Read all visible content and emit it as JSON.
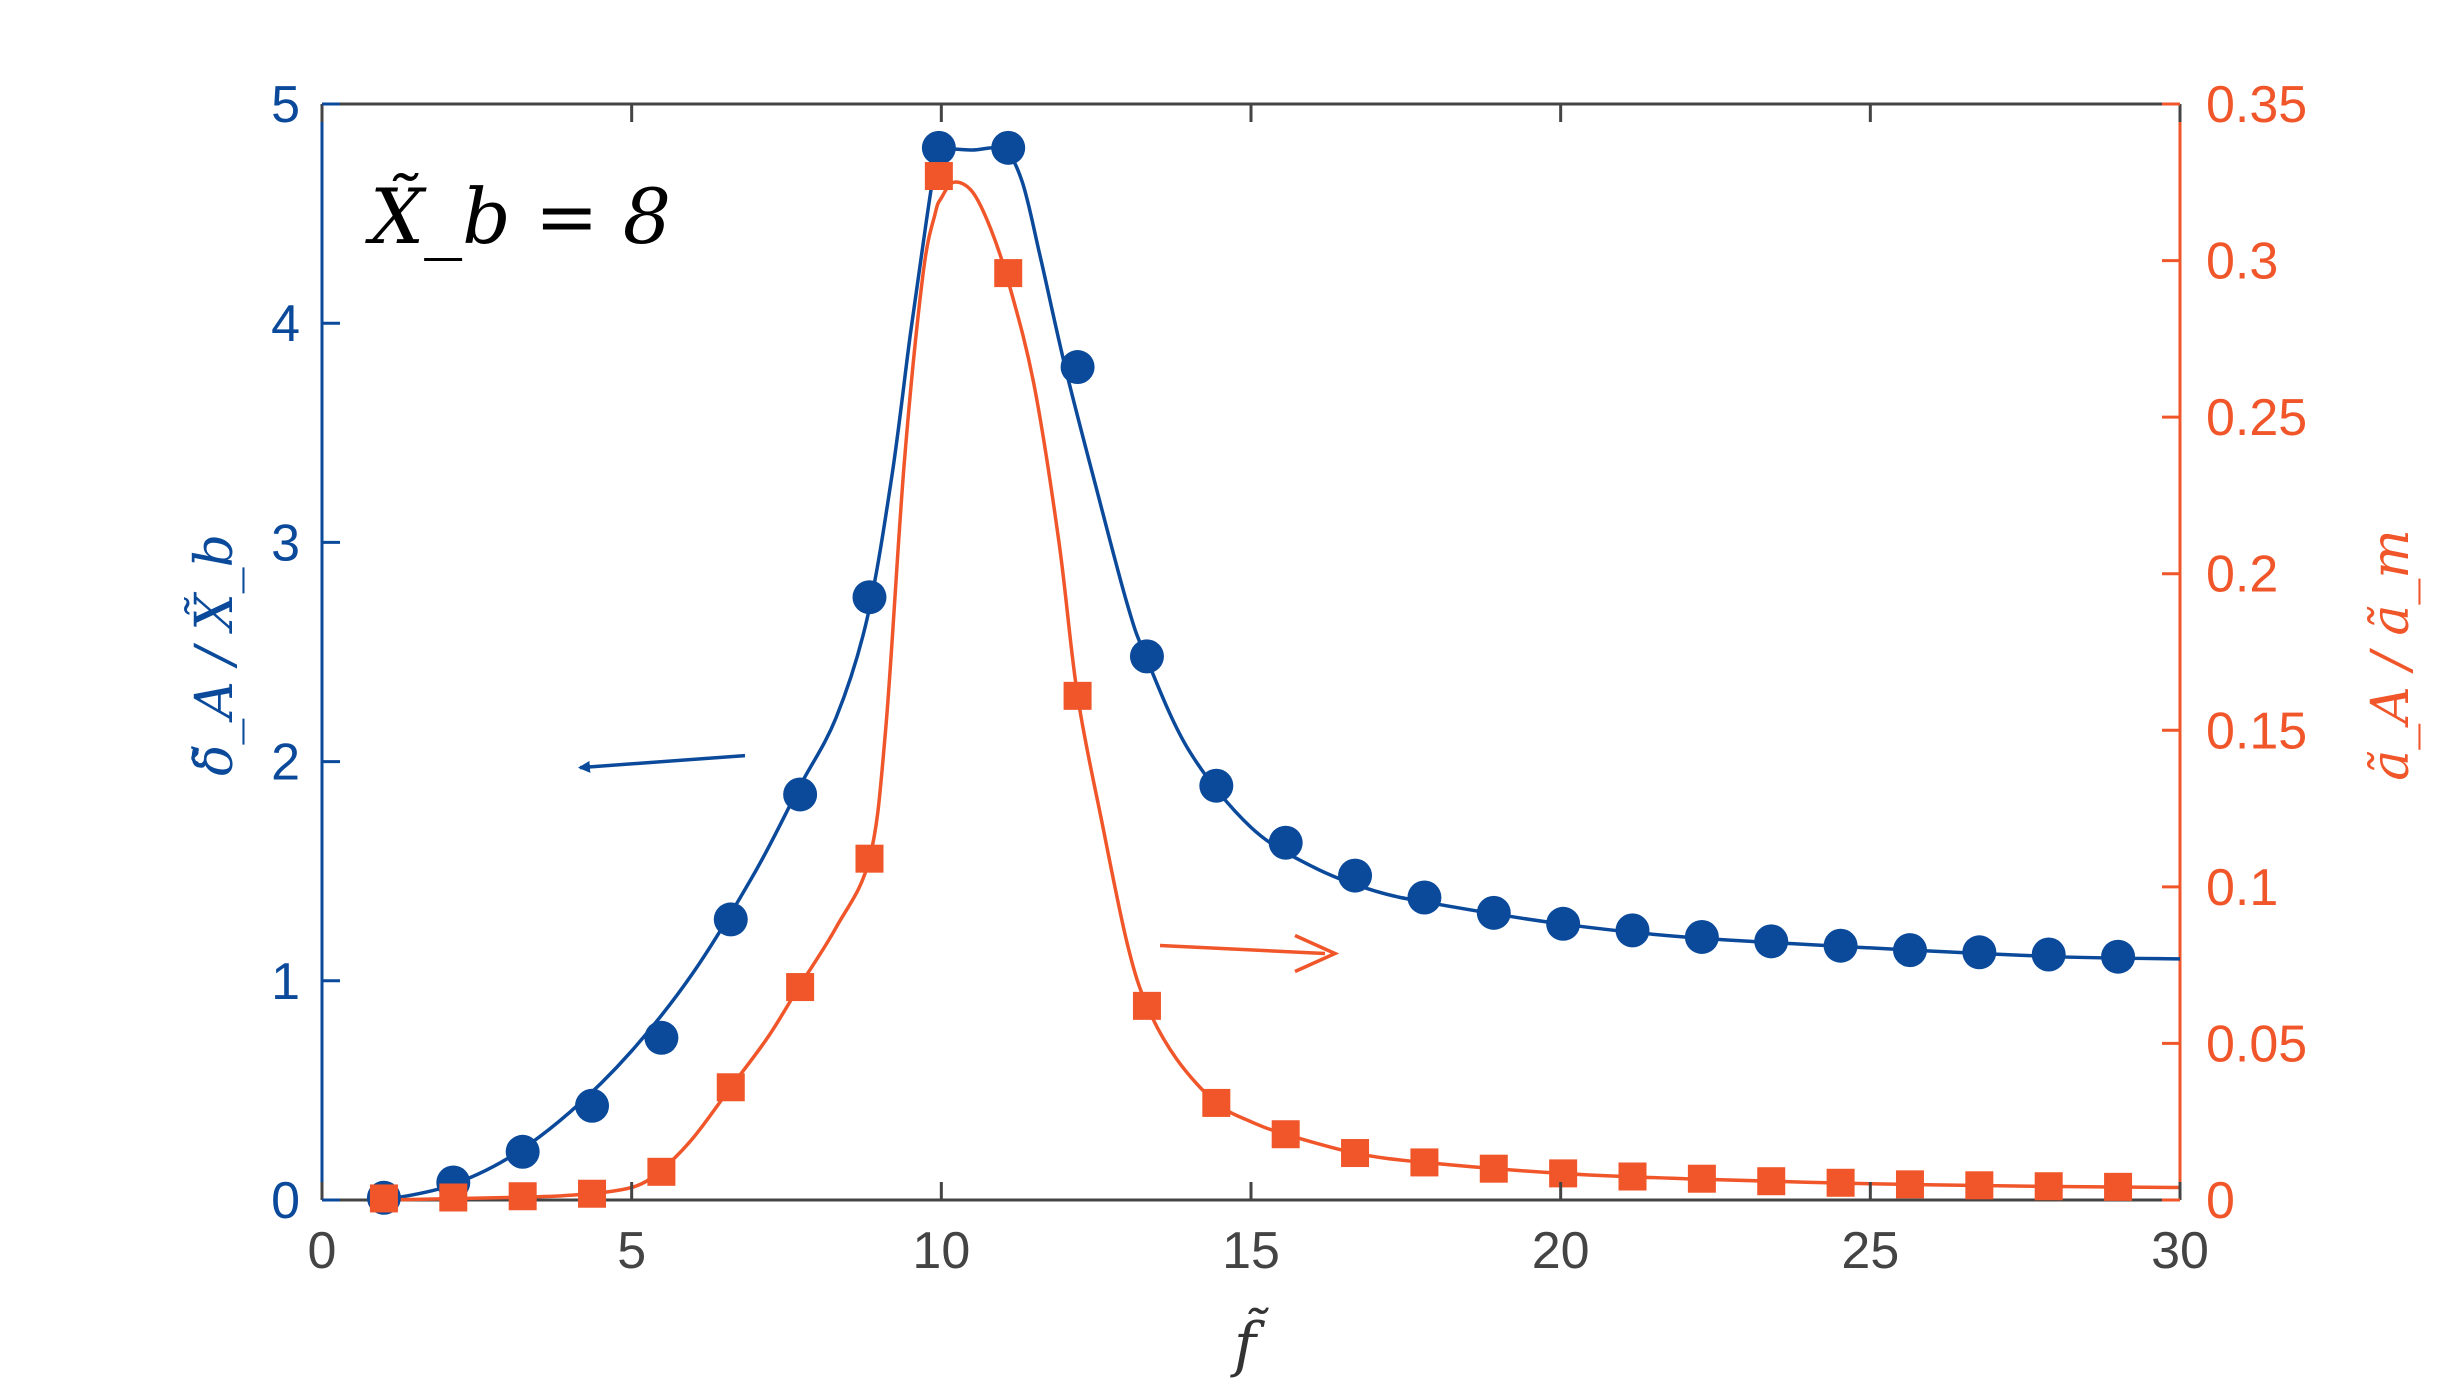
{
  "chart_data": {
    "type": "line",
    "annotation": "X̃_b = 8",
    "xlabel": "f̃",
    "ylabel_left": "δ̃_A / X̃_b",
    "ylabel_right": "ã_A / ã_m",
    "xlim": [
      0,
      30
    ],
    "ylim_left": [
      0,
      5
    ],
    "ylim_right": [
      0,
      0.35
    ],
    "x_ticks": [
      "0",
      "5",
      "10",
      "15",
      "20",
      "25",
      "30"
    ],
    "y_left_ticks": [
      "0",
      "1",
      "2",
      "3",
      "4",
      "5"
    ],
    "y_right_ticks": [
      "0",
      "0.05",
      "0.1",
      "0.15",
      "0.2",
      "0.25",
      "0.3",
      "0.35"
    ],
    "grid": false,
    "colors": {
      "left": "#0b4a9b",
      "right": "#f0562a",
      "axis_gray": "#444444"
    },
    "series": [
      {
        "axis": "left",
        "marker": "circle",
        "points_x": [
          1.0,
          2.12,
          3.24,
          4.36,
          5.48,
          6.6,
          7.72,
          8.84,
          9.96,
          11.08,
          12.2,
          13.32,
          14.44,
          15.56,
          16.68,
          17.8,
          18.92,
          20.04,
          21.16,
          22.28,
          23.4,
          24.52,
          25.64,
          26.76,
          27.88,
          29.0
        ],
        "points_y": [
          0.01,
          0.08,
          0.22,
          0.43,
          0.74,
          1.28,
          1.85,
          2.75,
          4.8,
          4.8,
          3.8,
          2.48,
          1.89,
          1.63,
          1.48,
          1.38,
          1.31,
          1.26,
          1.23,
          1.2,
          1.18,
          1.16,
          1.14,
          1.13,
          1.12,
          1.11
        ],
        "curve_x": [
          1.0,
          2.0,
          3.0,
          4.0,
          5.0,
          6.0,
          7.0,
          7.7,
          8.3,
          8.8,
          9.2,
          9.5,
          9.75,
          9.9,
          10.0,
          10.5,
          11.0,
          11.3,
          11.6,
          12.0,
          12.5,
          13.0,
          13.3,
          14.0,
          15.0,
          16.0,
          17.0,
          18.0,
          20.0,
          22.0,
          25.0,
          28.0,
          30.0
        ],
        "curve_y": [
          0.0,
          0.06,
          0.19,
          0.4,
          0.68,
          1.04,
          1.5,
          1.88,
          2.2,
          2.65,
          3.3,
          3.95,
          4.45,
          4.72,
          4.79,
          4.79,
          4.79,
          4.65,
          4.3,
          3.8,
          3.25,
          2.72,
          2.48,
          2.05,
          1.7,
          1.52,
          1.41,
          1.35,
          1.26,
          1.2,
          1.15,
          1.11,
          1.1
        ]
      },
      {
        "axis": "right",
        "marker": "square",
        "points_x": [
          1.0,
          2.12,
          3.24,
          4.36,
          5.48,
          6.6,
          7.72,
          8.84,
          9.96,
          11.08,
          12.2,
          13.32,
          14.44,
          15.56,
          16.68,
          17.8,
          18.92,
          20.04,
          21.16,
          22.28,
          23.4,
          24.52,
          25.64,
          26.76,
          27.88,
          29.0
        ],
        "points_y": [
          0.0005,
          0.0008,
          0.0012,
          0.002,
          0.009,
          0.036,
          0.068,
          0.109,
          0.327,
          0.296,
          0.161,
          0.062,
          0.031,
          0.021,
          0.015,
          0.012,
          0.01,
          0.0085,
          0.0075,
          0.0068,
          0.006,
          0.0055,
          0.005,
          0.0047,
          0.0044,
          0.0042
        ],
        "curve_x": [
          1.0,
          2.0,
          3.0,
          4.0,
          5.0,
          5.5,
          6.0,
          6.6,
          7.2,
          7.7,
          8.3,
          8.84,
          9.1,
          9.4,
          9.7,
          9.9,
          10.0,
          10.2,
          10.5,
          10.8,
          11.1,
          11.5,
          11.9,
          12.2,
          12.6,
          13.0,
          13.32,
          13.8,
          14.44,
          15.0,
          15.56,
          16.68,
          17.8,
          20.0,
          22.0,
          25.0,
          28.0,
          30.0
        ],
        "curve_y": [
          0.0,
          0.0004,
          0.0008,
          0.0015,
          0.004,
          0.01,
          0.02,
          0.036,
          0.052,
          0.068,
          0.087,
          0.109,
          0.15,
          0.235,
          0.295,
          0.315,
          0.32,
          0.325,
          0.322,
          0.31,
          0.292,
          0.26,
          0.21,
          0.161,
          0.12,
          0.082,
          0.062,
          0.045,
          0.031,
          0.025,
          0.021,
          0.015,
          0.012,
          0.0085,
          0.0068,
          0.0052,
          0.0043,
          0.004
        ]
      }
    ],
    "arrows": [
      {
        "axis": "left",
        "direction": "left"
      },
      {
        "axis": "right",
        "direction": "right"
      }
    ]
  }
}
